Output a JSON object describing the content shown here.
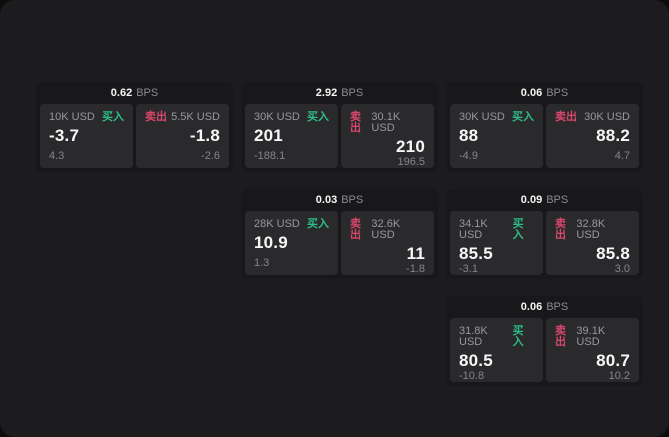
{
  "page": {
    "bps_suffix": "BPS",
    "buy_label": "买入",
    "sell_label": "卖出",
    "colors": {
      "buy": "#2ebd85",
      "sell": "#d9476b",
      "page_bg": "#1c1c1e",
      "card_bg": "#18181a",
      "panel_bg": "#2a2a2d"
    }
  },
  "cards": [
    {
      "bps": "0.62",
      "row": 1,
      "col": 1,
      "buy": {
        "amount": "10K USD",
        "value": "-3.7",
        "delta": "4.3"
      },
      "sell": {
        "amount": "5.5K USD",
        "value": "-1.8",
        "delta": "-2.6"
      }
    },
    {
      "bps": "2.92",
      "row": 1,
      "col": 2,
      "buy": {
        "amount": "30K USD",
        "value": "201",
        "delta": "-188.1"
      },
      "sell": {
        "amount": "30.1K USD",
        "value": "210",
        "delta": "196.5"
      }
    },
    {
      "bps": "0.06",
      "row": 1,
      "col": 3,
      "buy": {
        "amount": "30K USD",
        "value": "88",
        "delta": "-4.9"
      },
      "sell": {
        "amount": "30K USD",
        "value": "88.2",
        "delta": "4.7"
      }
    },
    {
      "bps": "0.03",
      "row": 2,
      "col": 2,
      "buy": {
        "amount": "28K USD",
        "value": "10.9",
        "delta": "1.3"
      },
      "sell": {
        "amount": "32.6K USD",
        "value": "11",
        "delta": "-1.8"
      }
    },
    {
      "bps": "0.09",
      "row": 2,
      "col": 3,
      "buy": {
        "amount": "34.1K USD",
        "value": "85.5",
        "delta": "-3.1"
      },
      "sell": {
        "amount": "32.8K USD",
        "value": "85.8",
        "delta": "3.0"
      }
    },
    {
      "bps": "0.06",
      "row": 3,
      "col": 3,
      "buy": {
        "amount": "31.8K USD",
        "value": "80.5",
        "delta": "-10.8"
      },
      "sell": {
        "amount": "39.1K USD",
        "value": "80.7",
        "delta": "10.2"
      }
    }
  ]
}
